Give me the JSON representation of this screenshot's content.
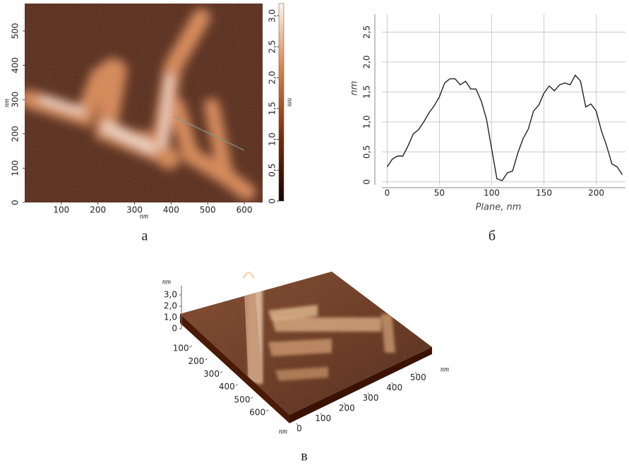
{
  "chart_data": [
    {
      "type": "image",
      "caption": "а",
      "xlabel": "nm",
      "ylabel": "nm",
      "xlim": [
        0,
        650
      ],
      "ylim": [
        0,
        580
      ],
      "xticks": [
        100,
        200,
        300,
        400,
        500,
        600
      ],
      "yticks": [
        0,
        100,
        200,
        300,
        400,
        500
      ],
      "colors": [
        "#140300",
        "#7a2e0c",
        "#d9814a",
        "#fff3e6"
      ],
      "colorbar": {
        "label": "nm",
        "lim": [
          0,
          3.2
        ],
        "ticks": [
          0,
          {
            "value": 0.5,
            "label": "0,5"
          },
          {
            "value": 1,
            "label": "1,0"
          },
          {
            "value": 1.5,
            "label": "1,5"
          },
          {
            "value": 2,
            "label": "2,0"
          },
          {
            "value": 2.5,
            "label": "2,5"
          },
          {
            "value": 3,
            "label": "3,0"
          }
        ]
      }
    },
    {
      "type": "line",
      "caption": "б",
      "xlabel": "Plane, nm",
      "ylabel": "nm",
      "color": "#222222",
      "grid": true,
      "xlim": [
        -5,
        228
      ],
      "ylim": [
        -0.05,
        2.8
      ],
      "xticks": [
        0,
        50,
        100,
        150,
        200
      ],
      "yticks": [
        0,
        {
          "value": 0.5,
          "label": "0,5"
        },
        {
          "value": 1,
          "label": "1,0"
        },
        {
          "value": 1.5,
          "label": "1,5"
        },
        {
          "value": 2,
          "label": "2,0"
        },
        {
          "value": 2.5,
          "label": "2,5"
        }
      ],
      "x": [
        0,
        5,
        10,
        15,
        20,
        25,
        30,
        35,
        40,
        45,
        50,
        55,
        60,
        65,
        70,
        75,
        80,
        85,
        90,
        95,
        100,
        105,
        110,
        115,
        120,
        125,
        130,
        135,
        140,
        145,
        150,
        155,
        160,
        165,
        170,
        175,
        180,
        185,
        190,
        195,
        200,
        205,
        210,
        215,
        220,
        225
      ],
      "values": [
        0.25,
        0.38,
        0.43,
        0.43,
        0.6,
        0.8,
        0.87,
        1.0,
        1.15,
        1.27,
        1.42,
        1.65,
        1.72,
        1.72,
        1.62,
        1.68,
        1.55,
        1.55,
        1.35,
        1.05,
        0.55,
        0.05,
        0.02,
        0.15,
        0.18,
        0.48,
        0.72,
        0.88,
        1.18,
        1.28,
        1.48,
        1.6,
        1.52,
        1.62,
        1.65,
        1.62,
        1.78,
        1.68,
        1.25,
        1.3,
        1.18,
        0.85,
        0.6,
        0.3,
        0.25,
        0.12
      ]
    },
    {
      "type": "surface",
      "caption": "в",
      "zlabel": "nm",
      "ylabel": "nm",
      "xlabel": "nm",
      "zlim": [
        0,
        3
      ],
      "zticks": [
        0,
        {
          "value": 1,
          "label": "1,0"
        },
        {
          "value": 2,
          "label": "2,0"
        },
        {
          "value": 3,
          "label": "3,0"
        }
      ],
      "ylim": [
        0,
        650
      ],
      "yticks": [
        100,
        200,
        300,
        400,
        500,
        600
      ],
      "xlim": [
        0,
        600
      ],
      "xticks": [
        0,
        100,
        200,
        300,
        400,
        500
      ]
    }
  ]
}
